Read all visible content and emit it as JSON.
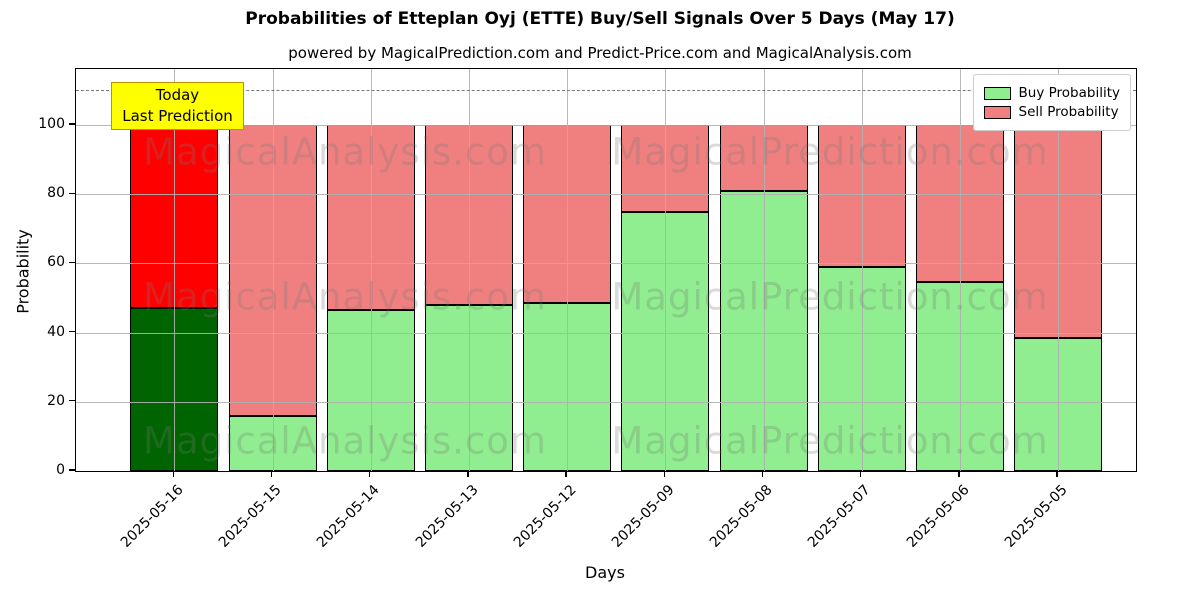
{
  "figure": {
    "title": "Probabilities of Etteplan Oyj (ETTE) Buy/Sell Signals Over 5 Days (May 17)",
    "subtitle": "powered by MagicalPrediction.com and Predict-Price.com and MagicalAnalysis.com"
  },
  "annotation": {
    "line1": "Today",
    "line2": "Last Prediction"
  },
  "legend": {
    "items": [
      {
        "label": "Buy Probability",
        "color": "#90EE90"
      },
      {
        "label": "Sell Probability",
        "color": "#F08080"
      }
    ]
  },
  "watermarks": {
    "left": "MagicalAnalysis.com",
    "right": "MagicalPrediction.com"
  },
  "colors": {
    "buy": "#90EE90",
    "sell": "#F08080",
    "today_buy": "#006400",
    "today_sell": "#FF0000",
    "annotation_bg": "#FFFF00",
    "grid": "#B0B0B0"
  },
  "chart_data": {
    "type": "bar",
    "stacked": true,
    "title": "Probabilities of Etteplan Oyj (ETTE) Buy/Sell Signals Over 5 Days (May 17)",
    "subtitle": "powered by MagicalPrediction.com and Predict-Price.com and MagicalAnalysis.com",
    "xlabel": "Days",
    "ylabel": "Probability",
    "categories": [
      "2025-05-16",
      "2025-05-15",
      "2025-05-14",
      "2025-05-13",
      "2025-05-12",
      "2025-05-09",
      "2025-05-08",
      "2025-05-07",
      "2025-05-06",
      "2025-05-05"
    ],
    "series": [
      {
        "name": "Buy Probability",
        "values": [
          47,
          16,
          46.5,
          48,
          48.5,
          75,
          81,
          59,
          54.5,
          38.5
        ]
      },
      {
        "name": "Sell Probability",
        "values": [
          53,
          84,
          53.5,
          52,
          51.5,
          25,
          19,
          41,
          45.5,
          61.5
        ]
      }
    ],
    "today_index": 0,
    "ylim": [
      0,
      116
    ],
    "yticks": [
      0,
      20,
      40,
      60,
      80,
      100
    ],
    "dashed_line_y": 110,
    "grid": true,
    "legend_position": "upper right"
  }
}
